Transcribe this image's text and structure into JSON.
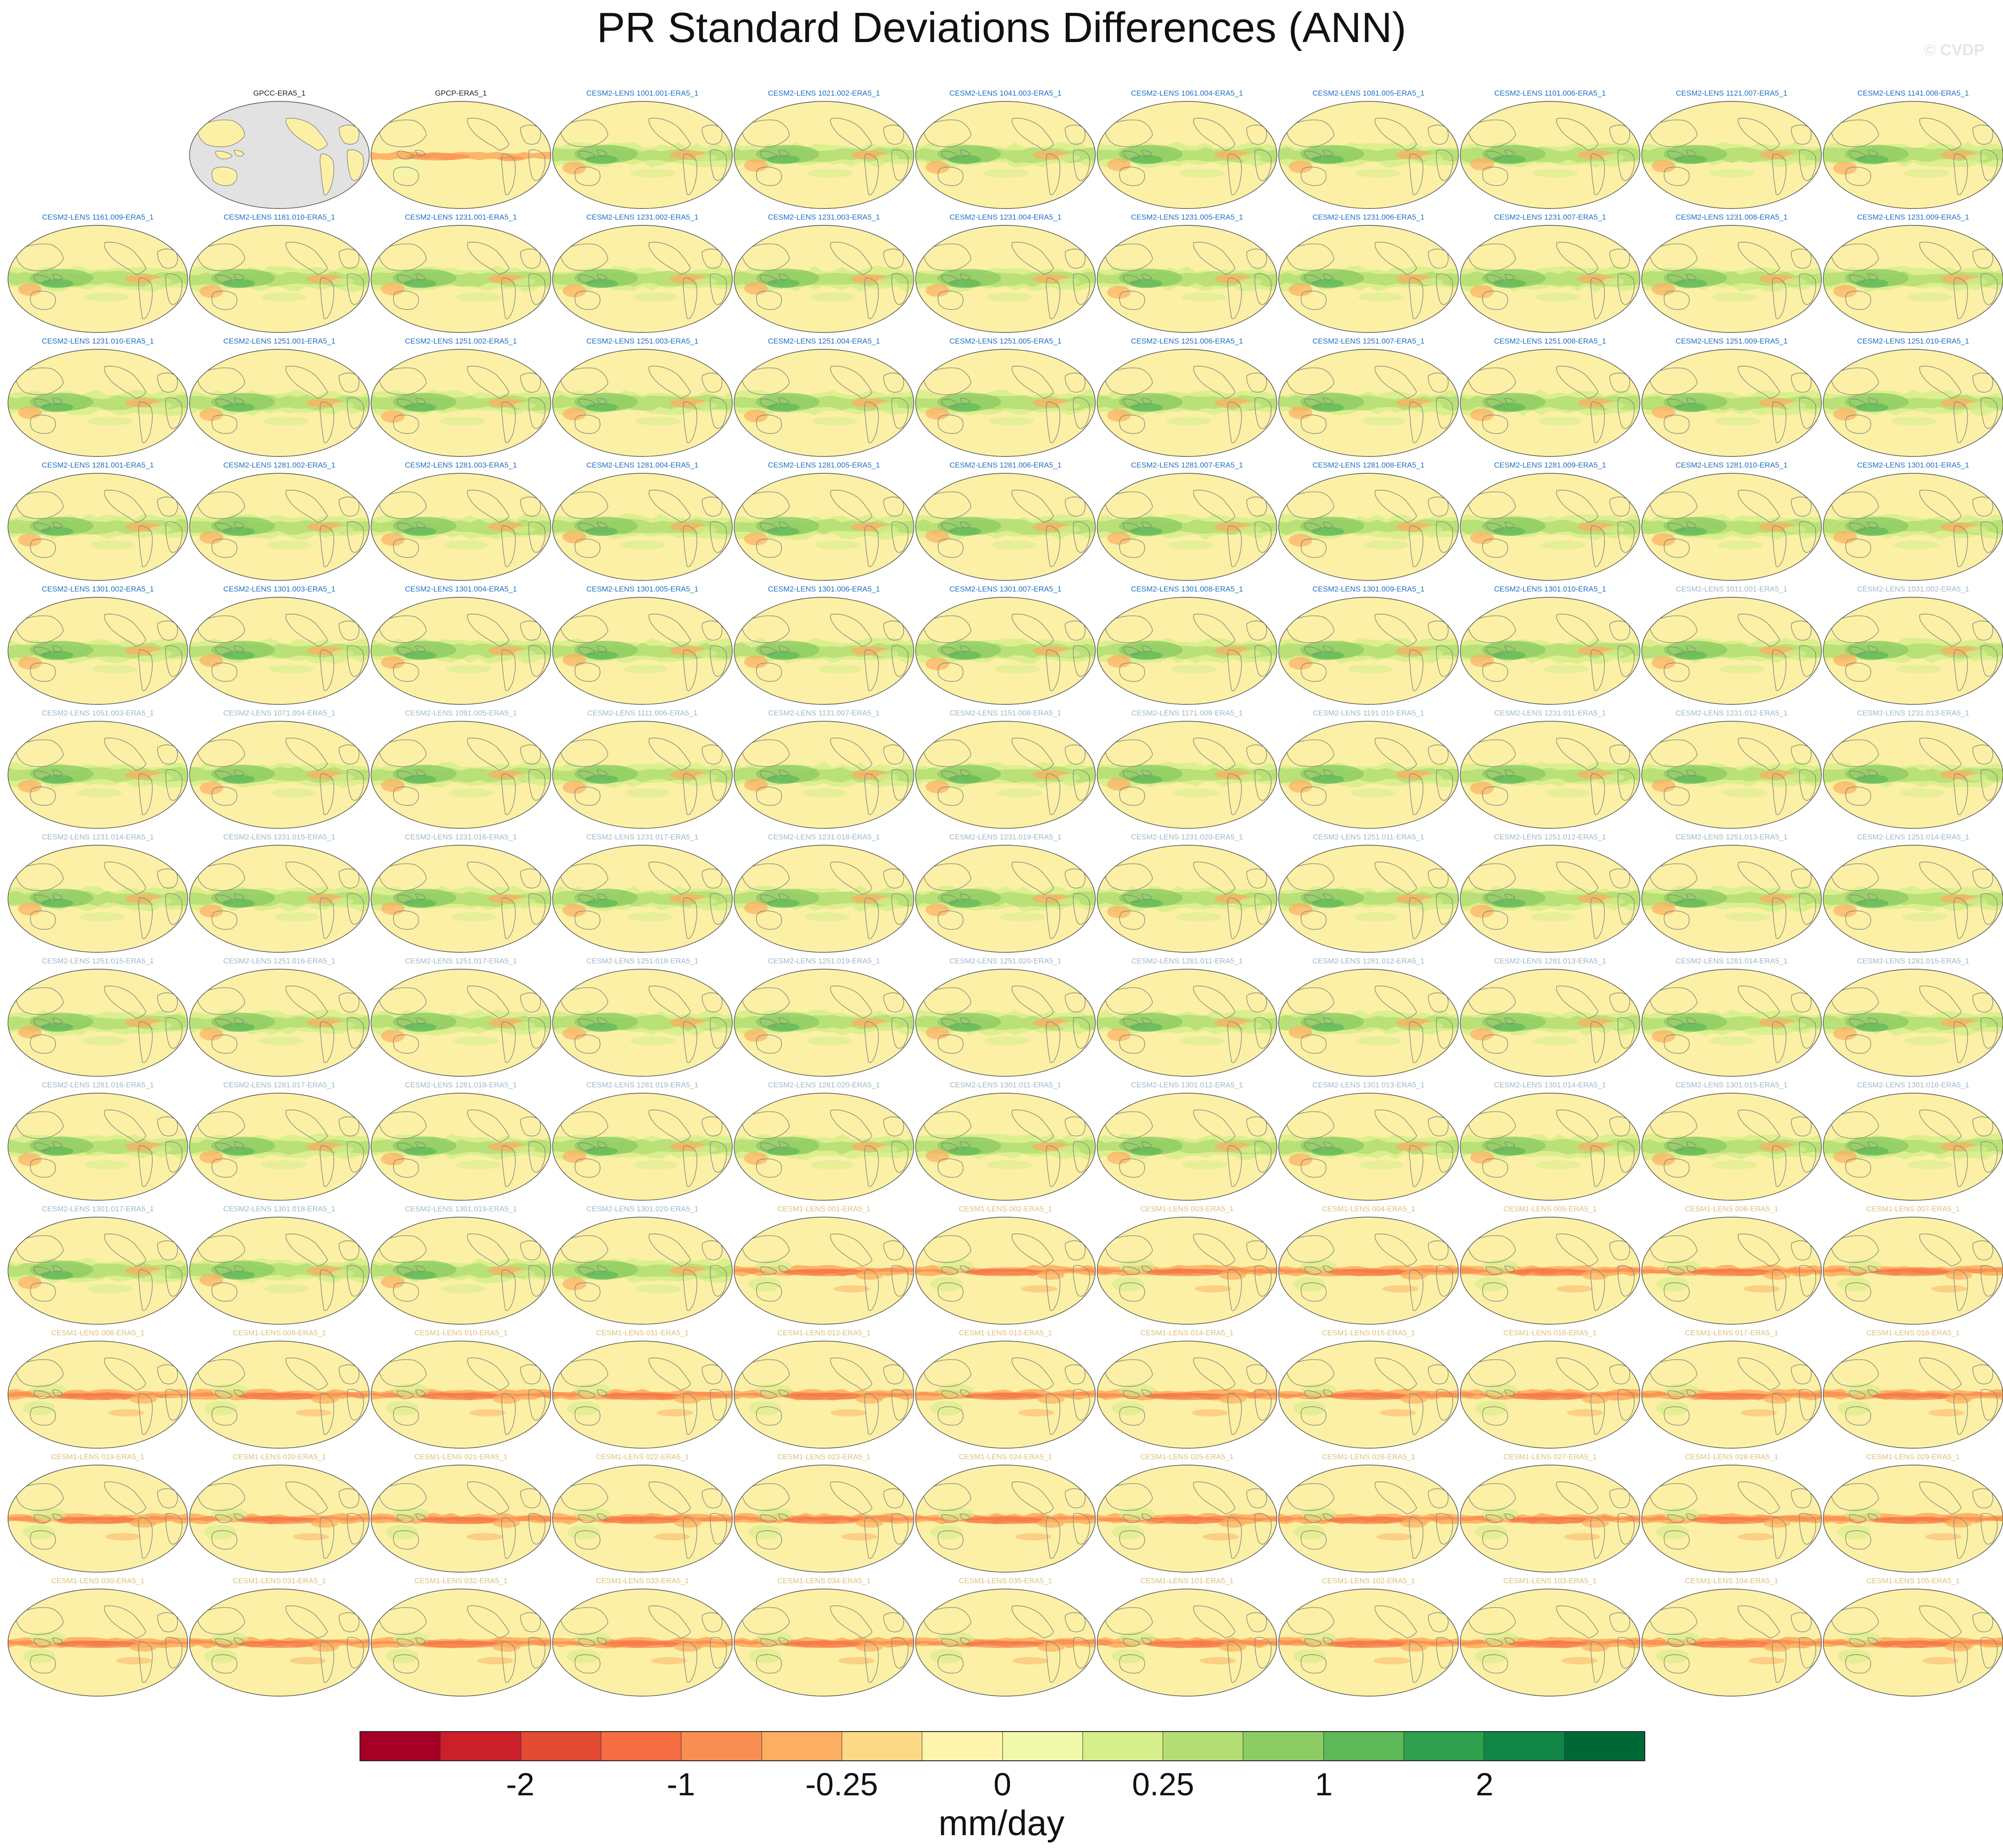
{
  "title": "PR Standard Deviations Differences (ANN)",
  "watermark": "© CVDP",
  "colors": {
    "label_obs": "#222222",
    "label_cesm2_a": "#1f6fbf",
    "label_cesm2_b": "#9fb7c7",
    "label_cesm1": "#d9c27a",
    "ocean": "#fbf0a6",
    "coast": "#8a8a7a",
    "land_missing": "#e2e2e2"
  },
  "colorbar": {
    "units": "mm/day",
    "colors": [
      "#a50026",
      "#c9202a",
      "#e34a33",
      "#f46d43",
      "#f98e52",
      "#fdae61",
      "#fdd985",
      "#fef4ac",
      "#f0f8aa",
      "#d6ee8b",
      "#b4de73",
      "#8dcc63",
      "#5db858",
      "#2e9f4c",
      "#128646",
      "#006837"
    ],
    "tick_labels": [
      "-2",
      "-1",
      "-0.25",
      "0",
      "0.25",
      "1",
      "2"
    ],
    "tick_boundaries": [
      2,
      4,
      6,
      8,
      10,
      12,
      14
    ]
  },
  "panels": [
    {
      "label": "GPCC-ERA5_1",
      "style": "obs-gpcc",
      "lc": "obs"
    },
    {
      "label": "GPCP-ERA5_1",
      "style": "obs",
      "lc": "obs"
    },
    {
      "label": "CESM2-LENS 1001.001-ERA5_1",
      "style": "green",
      "lc": "a"
    },
    {
      "label": "CESM2-LENS 1021.002-ERA5_1",
      "style": "green",
      "lc": "a"
    },
    {
      "label": "CESM2-LENS 1041.003-ERA5_1",
      "style": "green",
      "lc": "a"
    },
    {
      "label": "CESM2-LENS 1061.004-ERA5_1",
      "style": "green",
      "lc": "a"
    },
    {
      "label": "CESM2-LENS 1081.005-ERA5_1",
      "style": "green",
      "lc": "a"
    },
    {
      "label": "CESM2-LENS 1101.006-ERA5_1",
      "style": "green",
      "lc": "a"
    },
    {
      "label": "CESM2-LENS 1121.007-ERA5_1",
      "style": "green",
      "lc": "a"
    },
    {
      "label": "CESM2-LENS 1141.008-ERA5_1",
      "style": "green",
      "lc": "a"
    },
    {
      "label": "CESM2-LENS 1161.009-ERA5_1",
      "style": "green",
      "lc": "a"
    },
    {
      "label": "CESM2-LENS 1181.010-ERA5_1",
      "style": "green",
      "lc": "a"
    },
    {
      "label": "CESM2-LENS 1231.001-ERA5_1",
      "style": "green",
      "lc": "a"
    },
    {
      "label": "CESM2-LENS 1231.002-ERA5_1",
      "style": "green",
      "lc": "a"
    },
    {
      "label": "CESM2-LENS 1231.003-ERA5_1",
      "style": "green",
      "lc": "a"
    },
    {
      "label": "CESM2-LENS 1231.004-ERA5_1",
      "style": "green",
      "lc": "a"
    },
    {
      "label": "CESM2-LENS 1231.005-ERA5_1",
      "style": "green",
      "lc": "a"
    },
    {
      "label": "CESM2-LENS 1231.006-ERA5_1",
      "style": "green",
      "lc": "a"
    },
    {
      "label": "CESM2-LENS 1231.007-ERA5_1",
      "style": "green",
      "lc": "a"
    },
    {
      "label": "CESM2-LENS 1231.008-ERA5_1",
      "style": "green",
      "lc": "a"
    },
    {
      "label": "CESM2-LENS 1231.009-ERA5_1",
      "style": "green",
      "lc": "a"
    },
    {
      "label": "CESM2-LENS 1231.010-ERA5_1",
      "style": "green",
      "lc": "a"
    },
    {
      "label": "CESM2-LENS 1251.001-ERA5_1",
      "style": "green",
      "lc": "a"
    },
    {
      "label": "CESM2-LENS 1251.002-ERA5_1",
      "style": "green",
      "lc": "a"
    },
    {
      "label": "CESM2-LENS 1251.003-ERA5_1",
      "style": "green",
      "lc": "a"
    },
    {
      "label": "CESM2-LENS 1251.004-ERA5_1",
      "style": "green",
      "lc": "a"
    },
    {
      "label": "CESM2-LENS 1251.005-ERA5_1",
      "style": "green",
      "lc": "a"
    },
    {
      "label": "CESM2-LENS 1251.006-ERA5_1",
      "style": "green",
      "lc": "a"
    },
    {
      "label": "CESM2-LENS 1251.007-ERA5_1",
      "style": "green",
      "lc": "a"
    },
    {
      "label": "CESM2-LENS 1251.008-ERA5_1",
      "style": "green",
      "lc": "a"
    },
    {
      "label": "CESM2-LENS 1251.009-ERA5_1",
      "style": "green",
      "lc": "a"
    },
    {
      "label": "CESM2-LENS 1251.010-ERA5_1",
      "style": "green",
      "lc": "a"
    },
    {
      "label": "CESM2-LENS 1281.001-ERA5_1",
      "style": "green",
      "lc": "a"
    },
    {
      "label": "CESM2-LENS 1281.002-ERA5_1",
      "style": "green",
      "lc": "a"
    },
    {
      "label": "CESM2-LENS 1281.003-ERA5_1",
      "style": "green",
      "lc": "a"
    },
    {
      "label": "CESM2-LENS 1281.004-ERA5_1",
      "style": "green",
      "lc": "a"
    },
    {
      "label": "CESM2-LENS 1281.005-ERA5_1",
      "style": "green",
      "lc": "a"
    },
    {
      "label": "CESM2-LENS 1281.006-ERA5_1",
      "style": "green",
      "lc": "a"
    },
    {
      "label": "CESM2-LENS 1281.007-ERA5_1",
      "style": "green",
      "lc": "a"
    },
    {
      "label": "CESM2-LENS 1281.008-ERA5_1",
      "style": "green",
      "lc": "a"
    },
    {
      "label": "CESM2-LENS 1281.009-ERA5_1",
      "style": "green",
      "lc": "a"
    },
    {
      "label": "CESM2-LENS 1281.010-ERA5_1",
      "style": "green",
      "lc": "a"
    },
    {
      "label": "CESM2-LENS 1301.001-ERA5_1",
      "style": "green",
      "lc": "a"
    },
    {
      "label": "CESM2-LENS 1301.002-ERA5_1",
      "style": "green",
      "lc": "a"
    },
    {
      "label": "CESM2-LENS 1301.003-ERA5_1",
      "style": "green",
      "lc": "a"
    },
    {
      "label": "CESM2-LENS 1301.004-ERA5_1",
      "style": "green",
      "lc": "a"
    },
    {
      "label": "CESM2-LENS 1301.005-ERA5_1",
      "style": "green",
      "lc": "a"
    },
    {
      "label": "CESM2-LENS 1301.006-ERA5_1",
      "style": "green",
      "lc": "a"
    },
    {
      "label": "CESM2-LENS 1301.007-ERA5_1",
      "style": "green",
      "lc": "a"
    },
    {
      "label": "CESM2-LENS 1301.008-ERA5_1",
      "style": "green",
      "lc": "a"
    },
    {
      "label": "CESM2-LENS 1301.009-ERA5_1",
      "style": "green",
      "lc": "a"
    },
    {
      "label": "CESM2-LENS 1301.010-ERA5_1",
      "style": "green",
      "lc": "a"
    },
    {
      "label": "CESM2-LENS 1011.001-ERA5_1",
      "style": "green",
      "lc": "b"
    },
    {
      "label": "CESM2-LENS 1031.002-ERA5_1",
      "style": "green",
      "lc": "b"
    },
    {
      "label": "CESM2-LENS 1051.003-ERA5_1",
      "style": "green",
      "lc": "b"
    },
    {
      "label": "CESM2-LENS 1071.004-ERA5_1",
      "style": "green",
      "lc": "b"
    },
    {
      "label": "CESM2-LENS 1091.005-ERA5_1",
      "style": "green",
      "lc": "b"
    },
    {
      "label": "CESM2-LENS 1111.006-ERA5_1",
      "style": "green",
      "lc": "b"
    },
    {
      "label": "CESM2-LENS 1131.007-ERA5_1",
      "style": "green",
      "lc": "b"
    },
    {
      "label": "CESM2-LENS 1151.008-ERA5_1",
      "style": "green",
      "lc": "b"
    },
    {
      "label": "CESM2-LENS 1171.009-ERA5_1",
      "style": "green",
      "lc": "b"
    },
    {
      "label": "CESM2-LENS 1191.010-ERA5_1",
      "style": "green",
      "lc": "b"
    },
    {
      "label": "CESM2-LENS 1231.011-ERA5_1",
      "style": "green",
      "lc": "b"
    },
    {
      "label": "CESM2-LENS 1231.012-ERA5_1",
      "style": "green",
      "lc": "b"
    },
    {
      "label": "CESM2-LENS 1231.013-ERA5_1",
      "style": "green",
      "lc": "b"
    },
    {
      "label": "CESM2-LENS 1231.014-ERA5_1",
      "style": "green",
      "lc": "b"
    },
    {
      "label": "CESM2-LENS 1231.015-ERA5_1",
      "style": "green",
      "lc": "b"
    },
    {
      "label": "CESM2-LENS 1231.016-ERA5_1",
      "style": "green",
      "lc": "b"
    },
    {
      "label": "CESM2-LENS 1231.017-ERA5_1",
      "style": "green",
      "lc": "b"
    },
    {
      "label": "CESM2-LENS 1231.018-ERA5_1",
      "style": "green",
      "lc": "b"
    },
    {
      "label": "CESM2-LENS 1231.019-ERA5_1",
      "style": "green",
      "lc": "b"
    },
    {
      "label": "CESM2-LENS 1231.020-ERA5_1",
      "style": "green",
      "lc": "b"
    },
    {
      "label": "CESM2-LENS 1251.011-ERA5_1",
      "style": "green",
      "lc": "b"
    },
    {
      "label": "CESM2-LENS 1251.012-ERA5_1",
      "style": "green",
      "lc": "b"
    },
    {
      "label": "CESM2-LENS 1251.013-ERA5_1",
      "style": "green",
      "lc": "b"
    },
    {
      "label": "CESM2-LENS 1251.014-ERA5_1",
      "style": "green",
      "lc": "b"
    },
    {
      "label": "CESM2-LENS 1251.015-ERA5_1",
      "style": "green",
      "lc": "b"
    },
    {
      "label": "CESM2-LENS 1251.016-ERA5_1",
      "style": "green",
      "lc": "b"
    },
    {
      "label": "CESM2-LENS 1251.017-ERA5_1",
      "style": "green",
      "lc": "b"
    },
    {
      "label": "CESM2-LENS 1251.018-ERA5_1",
      "style": "green",
      "lc": "b"
    },
    {
      "label": "CESM2-LENS 1251.019-ERA5_1",
      "style": "green",
      "lc": "b"
    },
    {
      "label": "CESM2-LENS 1251.020-ERA5_1",
      "style": "green",
      "lc": "b"
    },
    {
      "label": "CESM2-LENS 1281.011-ERA5_1",
      "style": "green",
      "lc": "b"
    },
    {
      "label": "CESM2-LENS 1281.012-ERA5_1",
      "style": "green",
      "lc": "b"
    },
    {
      "label": "CESM2-LENS 1281.013-ERA5_1",
      "style": "green",
      "lc": "b"
    },
    {
      "label": "CESM2-LENS 1281.014-ERA5_1",
      "style": "green",
      "lc": "b"
    },
    {
      "label": "CESM2-LENS 1281.015-ERA5_1",
      "style": "green",
      "lc": "b"
    },
    {
      "label": "CESM2-LENS 1281.016-ERA5_1",
      "style": "green",
      "lc": "b"
    },
    {
      "label": "CESM2-LENS 1281.017-ERA5_1",
      "style": "green",
      "lc": "b"
    },
    {
      "label": "CESM2-LENS 1281.018-ERA5_1",
      "style": "green",
      "lc": "b"
    },
    {
      "label": "CESM2-LENS 1281.019-ERA5_1",
      "style": "green",
      "lc": "b"
    },
    {
      "label": "CESM2-LENS 1281.020-ERA5_1",
      "style": "green",
      "lc": "b"
    },
    {
      "label": "CESM2-LENS 1301.011-ERA5_1",
      "style": "green",
      "lc": "b"
    },
    {
      "label": "CESM2-LENS 1301.012-ERA5_1",
      "style": "green",
      "lc": "b"
    },
    {
      "label": "CESM2-LENS 1301.013-ERA5_1",
      "style": "green",
      "lc": "b"
    },
    {
      "label": "CESM2-LENS 1301.014-ERA5_1",
      "style": "green",
      "lc": "b"
    },
    {
      "label": "CESM2-LENS 1301.015-ERA5_1",
      "style": "green",
      "lc": "b"
    },
    {
      "label": "CESM2-LENS 1301.016-ERA5_1",
      "style": "green",
      "lc": "b"
    },
    {
      "label": "CESM2-LENS 1301.017-ERA5_1",
      "style": "green",
      "lc": "b"
    },
    {
      "label": "CESM2-LENS 1301.018-ERA5_1",
      "style": "green",
      "lc": "b"
    },
    {
      "label": "CESM2-LENS 1301.019-ERA5_1",
      "style": "green",
      "lc": "b"
    },
    {
      "label": "CESM2-LENS 1301.020-ERA5_1",
      "style": "green",
      "lc": "b"
    },
    {
      "label": "CESM1-LENS 001-ERA5_1",
      "style": "orange",
      "lc": "c1"
    },
    {
      "label": "CESM1-LENS 002-ERA5_1",
      "style": "orange",
      "lc": "c1"
    },
    {
      "label": "CESM1-LENS 003-ERA5_1",
      "style": "orange",
      "lc": "c1"
    },
    {
      "label": "CESM1-LENS 004-ERA5_1",
      "style": "orange",
      "lc": "c1"
    },
    {
      "label": "CESM1-LENS 005-ERA5_1",
      "style": "orange",
      "lc": "c1"
    },
    {
      "label": "CESM1-LENS 006-ERA5_1",
      "style": "orange",
      "lc": "c1"
    },
    {
      "label": "CESM1-LENS 007-ERA5_1",
      "style": "orange",
      "lc": "c1"
    },
    {
      "label": "CESM1-LENS 008-ERA5_1",
      "style": "orange",
      "lc": "c1"
    },
    {
      "label": "CESM1-LENS 009-ERA5_1",
      "style": "orange",
      "lc": "c1"
    },
    {
      "label": "CESM1-LENS 010-ERA5_1",
      "style": "orange",
      "lc": "c1"
    },
    {
      "label": "CESM1-LENS 011-ERA5_1",
      "style": "orange",
      "lc": "c1"
    },
    {
      "label": "CESM1-LENS 012-ERA5_1",
      "style": "orange",
      "lc": "c1"
    },
    {
      "label": "CESM1-LENS 013-ERA5_1",
      "style": "orange",
      "lc": "c1"
    },
    {
      "label": "CESM1-LENS 014-ERA5_1",
      "style": "orange",
      "lc": "c1"
    },
    {
      "label": "CESM1-LENS 015-ERA5_1",
      "style": "orange",
      "lc": "c1"
    },
    {
      "label": "CESM1-LENS 016-ERA5_1",
      "style": "orange",
      "lc": "c1"
    },
    {
      "label": "CESM1-LENS 017-ERA5_1",
      "style": "orange",
      "lc": "c1"
    },
    {
      "label": "CESM1-LENS 018-ERA5_1",
      "style": "orange",
      "lc": "c1"
    },
    {
      "label": "CESM1-LENS 019-ERA5_1",
      "style": "orange",
      "lc": "c1"
    },
    {
      "label": "CESM1-LENS 020-ERA5_1",
      "style": "orange",
      "lc": "c1"
    },
    {
      "label": "CESM1-LENS 021-ERA5_1",
      "style": "orange",
      "lc": "c1"
    },
    {
      "label": "CESM1-LENS 022-ERA5_1",
      "style": "orange",
      "lc": "c1"
    },
    {
      "label": "CESM1-LENS 023-ERA5_1",
      "style": "orange",
      "lc": "c1"
    },
    {
      "label": "CESM1-LENS 024-ERA5_1",
      "style": "orange",
      "lc": "c1"
    },
    {
      "label": "CESM1-LENS 025-ERA5_1",
      "style": "orange",
      "lc": "c1"
    },
    {
      "label": "CESM1-LENS 026-ERA5_1",
      "style": "orange",
      "lc": "c1"
    },
    {
      "label": "CESM1-LENS 027-ERA5_1",
      "style": "orange",
      "lc": "c1"
    },
    {
      "label": "CESM1-LENS 028-ERA5_1",
      "style": "orange",
      "lc": "c1"
    },
    {
      "label": "CESM1-LENS 029-ERA5_1",
      "style": "orange",
      "lc": "c1"
    },
    {
      "label": "CESM1-LENS 030-ERA5_1",
      "style": "orange",
      "lc": "c1"
    },
    {
      "label": "CESM1-LENS 031-ERA5_1",
      "style": "orange",
      "lc": "c1"
    },
    {
      "label": "CESM1-LENS 032-ERA5_1",
      "style": "orange",
      "lc": "c1"
    },
    {
      "label": "CESM1-LENS 033-ERA5_1",
      "style": "orange",
      "lc": "c1"
    },
    {
      "label": "CESM1-LENS 034-ERA5_1",
      "style": "orange",
      "lc": "c1"
    },
    {
      "label": "CESM1-LENS 035-ERA5_1",
      "style": "orange",
      "lc": "c1"
    },
    {
      "label": "CESM1-LENS 101-ERA5_1",
      "style": "orange",
      "lc": "c1"
    },
    {
      "label": "CESM1-LENS 102-ERA5_1",
      "style": "orange",
      "lc": "c1"
    },
    {
      "label": "CESM1-LENS 103-ERA5_1",
      "style": "orange",
      "lc": "c1"
    },
    {
      "label": "CESM1-LENS 104-ERA5_1",
      "style": "orange",
      "lc": "c1"
    },
    {
      "label": "CESM1-LENS 105-ERA5_1",
      "style": "orange",
      "lc": "c1"
    }
  ]
}
